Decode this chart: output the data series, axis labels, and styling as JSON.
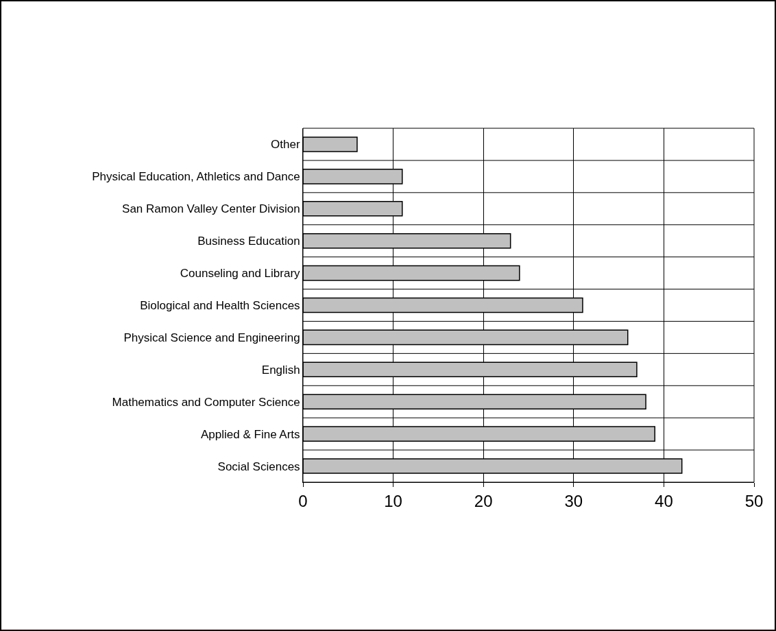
{
  "chart_data": {
    "type": "bar",
    "orientation": "horizontal",
    "categories": [
      "Other",
      "Physical Education, Athletics and Dance",
      "San Ramon Valley Center Division",
      "Business Education",
      "Counseling and Library",
      "Biological and Health Sciences",
      "Physical Science and Engineering",
      "English",
      "Mathematics and Computer Science",
      "Applied & Fine Arts",
      "Social Sciences"
    ],
    "values": [
      6,
      11,
      11,
      23,
      24,
      31,
      36,
      37,
      38,
      39,
      42
    ],
    "color": "#c0c0c0",
    "xlim": [
      0,
      50
    ],
    "xticks": [
      0,
      10,
      20,
      30,
      40,
      50
    ],
    "grid": true
  }
}
